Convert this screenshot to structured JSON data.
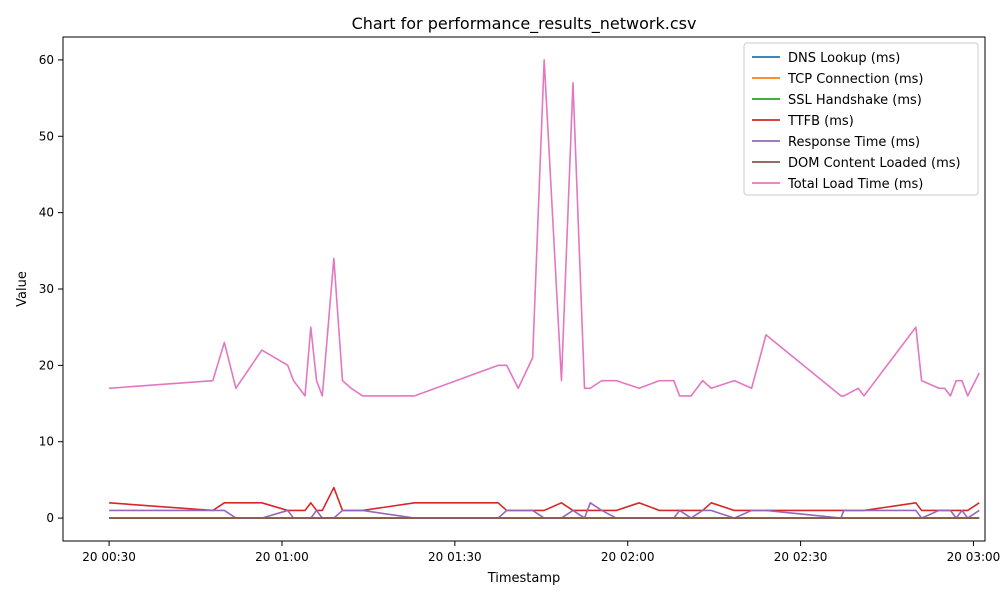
{
  "chart_data": {
    "type": "line",
    "title": "Chart for performance_results_network.csv",
    "xlabel": "Timestamp",
    "ylabel": "Value",
    "xlim_minutes": [
      22,
      182
    ],
    "ylim": [
      -3,
      63
    ],
    "x_ticks": [
      {
        "minute": 30,
        "label": "20 00:30"
      },
      {
        "minute": 60,
        "label": "20 01:00"
      },
      {
        "minute": 90,
        "label": "20 01:30"
      },
      {
        "minute": 120,
        "label": "20 02:00"
      },
      {
        "minute": 150,
        "label": "20 02:30"
      },
      {
        "minute": 180,
        "label": "20 03:00"
      }
    ],
    "y_ticks": [
      0,
      10,
      20,
      30,
      40,
      50,
      60
    ],
    "legend_position": "top-right",
    "x": [
      30,
      48,
      50,
      52,
      56.5,
      61,
      62,
      64,
      65,
      66,
      67,
      69,
      70.5,
      72,
      74,
      83,
      97.5,
      99,
      101,
      103.5,
      105.5,
      108.5,
      110.5,
      112.5,
      113.5,
      115.5,
      118,
      122,
      125.5,
      128,
      129,
      131,
      133,
      134.5,
      138.5,
      141.5,
      144,
      157,
      157.5,
      160,
      161,
      170,
      171,
      174,
      175,
      176,
      177,
      178,
      179,
      181
    ],
    "series": [
      {
        "name": "DNS Lookup (ms)",
        "color": "#1f77b4",
        "values": [
          0,
          0,
          0,
          0,
          0,
          0,
          0,
          0,
          0,
          0,
          0,
          0,
          0,
          0,
          0,
          0,
          0,
          0,
          0,
          0,
          0,
          0,
          0,
          0,
          0,
          0,
          0,
          0,
          0,
          0,
          0,
          0,
          0,
          0,
          0,
          0,
          0,
          0,
          0,
          0,
          0,
          0,
          0,
          0,
          0,
          0,
          0,
          0,
          0,
          0
        ]
      },
      {
        "name": "TCP Connection (ms)",
        "color": "#ff7f0e",
        "values": [
          0,
          0,
          0,
          0,
          0,
          0,
          0,
          0,
          0,
          0,
          0,
          0,
          0,
          0,
          0,
          0,
          0,
          0,
          0,
          0,
          0,
          0,
          0,
          0,
          0,
          0,
          0,
          0,
          0,
          0,
          0,
          0,
          0,
          0,
          0,
          0,
          0,
          0,
          0,
          0,
          0,
          0,
          0,
          0,
          0,
          0,
          0,
          0,
          0,
          0
        ]
      },
      {
        "name": "SSL Handshake (ms)",
        "color": "#2ca02c",
        "values": [
          0,
          0,
          0,
          0,
          0,
          0,
          0,
          0,
          0,
          0,
          0,
          0,
          0,
          0,
          0,
          0,
          0,
          0,
          0,
          0,
          0,
          0,
          0,
          0,
          0,
          0,
          0,
          0,
          0,
          0,
          0,
          0,
          0,
          0,
          0,
          0,
          0,
          0,
          0,
          0,
          0,
          0,
          0,
          0,
          0,
          0,
          0,
          0,
          0,
          0
        ]
      },
      {
        "name": "TTFB (ms)",
        "color": "#d62728",
        "values": [
          2,
          1,
          2,
          2,
          2,
          1,
          1,
          1,
          2,
          1,
          1,
          4,
          1,
          1,
          1,
          2,
          2,
          1,
          1,
          1,
          1,
          2,
          1,
          1,
          1,
          1,
          1,
          2,
          1,
          1,
          1,
          1,
          1,
          2,
          1,
          1,
          1,
          1,
          1,
          1,
          1,
          2,
          1,
          1,
          1,
          1,
          1,
          1,
          1,
          2
        ]
      },
      {
        "name": "Response Time (ms)",
        "color": "#9467bd",
        "values": [
          1,
          1,
          1,
          0,
          0,
          1,
          0,
          0,
          0,
          1,
          0,
          0,
          1,
          1,
          1,
          0,
          0,
          1,
          1,
          1,
          0,
          0,
          1,
          0,
          2,
          1,
          0,
          0,
          0,
          0,
          1,
          0,
          1,
          1,
          0,
          1,
          1,
          0,
          1,
          1,
          1,
          1,
          0,
          1,
          1,
          1,
          0,
          1,
          0,
          1
        ]
      },
      {
        "name": "DOM Content Loaded (ms)",
        "color": "#8c564b",
        "values": [
          0,
          0,
          0,
          0,
          0,
          0,
          0,
          0,
          0,
          0,
          0,
          0,
          0,
          0,
          0,
          0,
          0,
          0,
          0,
          0,
          0,
          0,
          0,
          0,
          0,
          0,
          0,
          0,
          0,
          0,
          0,
          0,
          0,
          0,
          0,
          0,
          0,
          0,
          0,
          0,
          0,
          0,
          0,
          0,
          0,
          0,
          0,
          0,
          0,
          0
        ]
      },
      {
        "name": "Total Load Time (ms)",
        "color": "#e377c2",
        "values": [
          17,
          18,
          23,
          17,
          22,
          20,
          18,
          16,
          25,
          18,
          16,
          34,
          18,
          17,
          16,
          16,
          20,
          20,
          17,
          21,
          60,
          18,
          57,
          17,
          17,
          18,
          18,
          17,
          18,
          18,
          16,
          16,
          18,
          17,
          18,
          17,
          24,
          16,
          16,
          17,
          16,
          25,
          18,
          17,
          17,
          16,
          18,
          18,
          16,
          19
        ]
      }
    ]
  }
}
